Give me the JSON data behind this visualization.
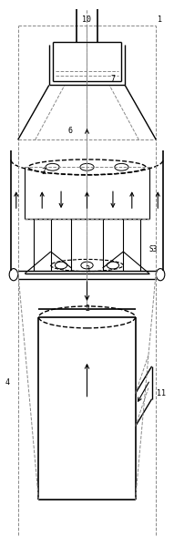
{
  "fig_width": 1.91,
  "fig_height": 6.0,
  "dpi": 100,
  "bg_color": "#ffffff",
  "line_color": "#000000",
  "dashed_color": "#888888"
}
